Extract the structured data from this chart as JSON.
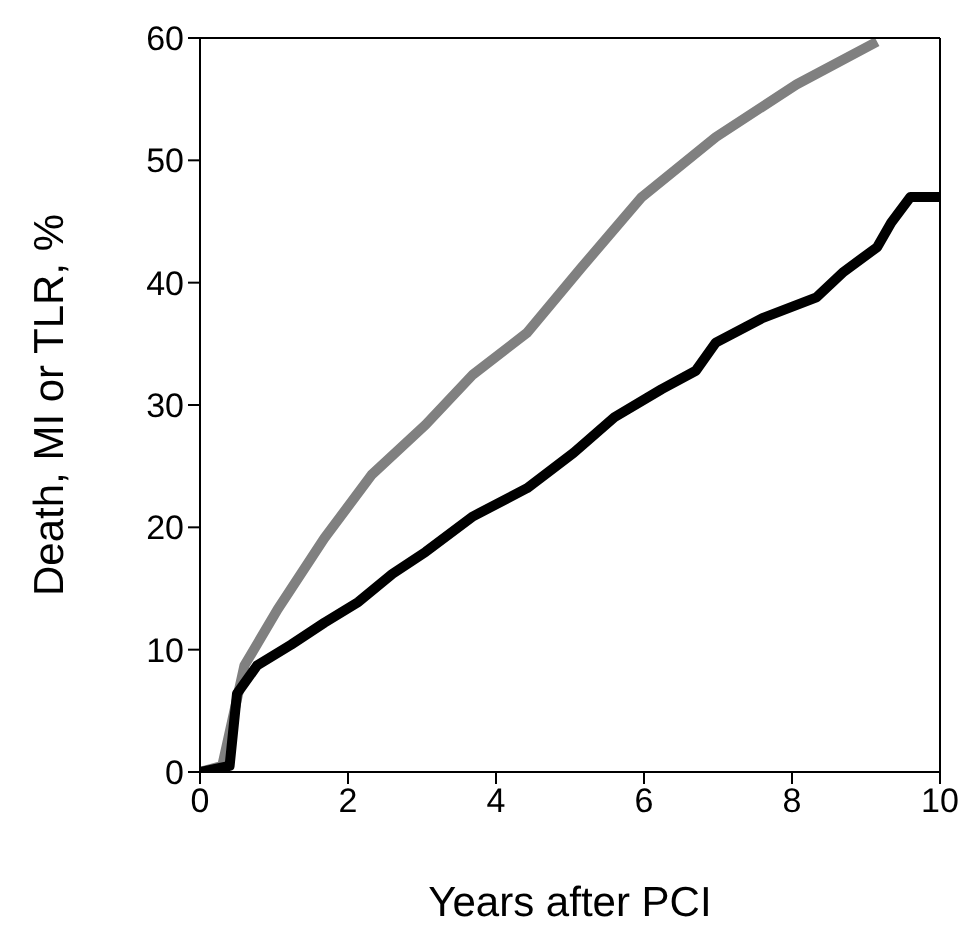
{
  "chart_data": {
    "type": "line",
    "xlabel": "Years after PCI",
    "ylabel": "Death, MI or TLR, %",
    "xlim": [
      0,
      10
    ],
    "xticks": [
      0,
      2,
      4,
      6,
      8,
      10
    ],
    "ylim": [
      0,
      60
    ],
    "yticks": [
      0,
      10,
      20,
      30,
      40,
      50,
      60
    ],
    "legend": false,
    "marker": "none",
    "line_style": "solid",
    "series": [
      {
        "color": "#808080",
        "x": [
          0,
          0.3,
          0.6,
          1.05,
          1.68,
          2.32,
          3.05,
          3.69,
          4.42,
          5.15,
          5.97,
          6.97,
          8.06,
          9.15
        ],
        "values": [
          0,
          0.5,
          8.7,
          13.3,
          19.1,
          24.3,
          28.4,
          32.5,
          35.9,
          41.2,
          47,
          51.9,
          56.2,
          59.7
        ]
      },
      {
        "color": "#000000",
        "x": [
          0,
          0.4,
          0.5,
          0.77,
          1.23,
          1.68,
          2.14,
          2.6,
          3.05,
          3.69,
          4.42,
          5.05,
          5.6,
          6.24,
          6.7,
          6.97,
          7.6,
          8.33,
          8.7,
          9.15,
          9.34,
          9.6,
          10
        ],
        "values": [
          0,
          0.5,
          6.4,
          8.7,
          10.4,
          12.2,
          13.9,
          16.2,
          18,
          20.9,
          23.2,
          26.1,
          29,
          31.3,
          32.8,
          35.1,
          37.1,
          38.8,
          40.9,
          42.9,
          44.9,
          47,
          47
        ]
      }
    ]
  }
}
